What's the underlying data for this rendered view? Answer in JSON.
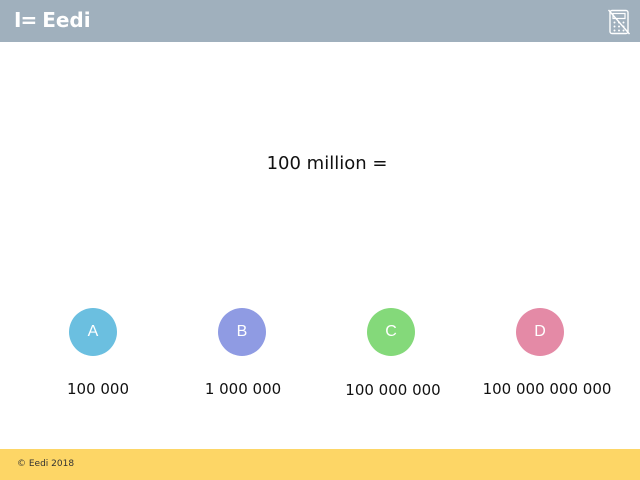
{
  "header": {
    "logo_mark": "I=",
    "logo_text": "Eedi",
    "calculator_icon": "calculator-not-allowed-icon",
    "background": "#a0b0bd"
  },
  "question": {
    "text": "100 million ="
  },
  "options": [
    {
      "letter": "A",
      "answer": "100 000",
      "color": "#6bbfe0"
    },
    {
      "letter": "B",
      "answer": "1 000 000",
      "color": "#8f9be3"
    },
    {
      "letter": "C",
      "answer": "100 000 000",
      "color": "#84d97a"
    },
    {
      "letter": "D",
      "answer": "100 000 000 000",
      "color": "#e48aa6"
    }
  ],
  "footer": {
    "copyright": "© Eedi 2018",
    "background": "#fdd666"
  }
}
